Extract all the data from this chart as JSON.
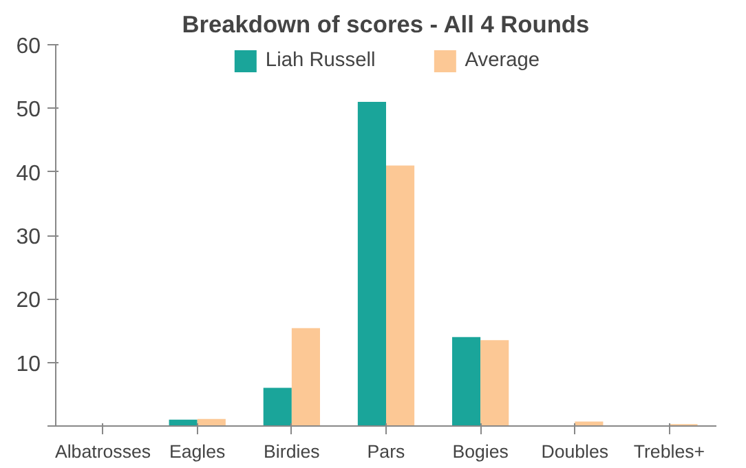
{
  "chart_data": {
    "type": "bar",
    "title": "Breakdown of scores - All 4 Rounds",
    "categories": [
      "Albatrosses",
      "Eagles",
      "Birdies",
      "Pars",
      "Bogies",
      "Doubles",
      "Trebles+"
    ],
    "series": [
      {
        "name": "Liah Russell",
        "color": "#1aa59a",
        "values": [
          0,
          1,
          6,
          51,
          14,
          0,
          0
        ]
      },
      {
        "name": "Average",
        "color": "#fcc895",
        "values": [
          0,
          1.1,
          15.4,
          41,
          13.5,
          0.7,
          0.3
        ]
      }
    ],
    "ylim": [
      0,
      60
    ],
    "yticks": [
      {
        "value": 0,
        "label": null
      },
      10,
      20,
      30,
      40,
      50,
      60
    ],
    "grid": false,
    "legend": "top"
  }
}
